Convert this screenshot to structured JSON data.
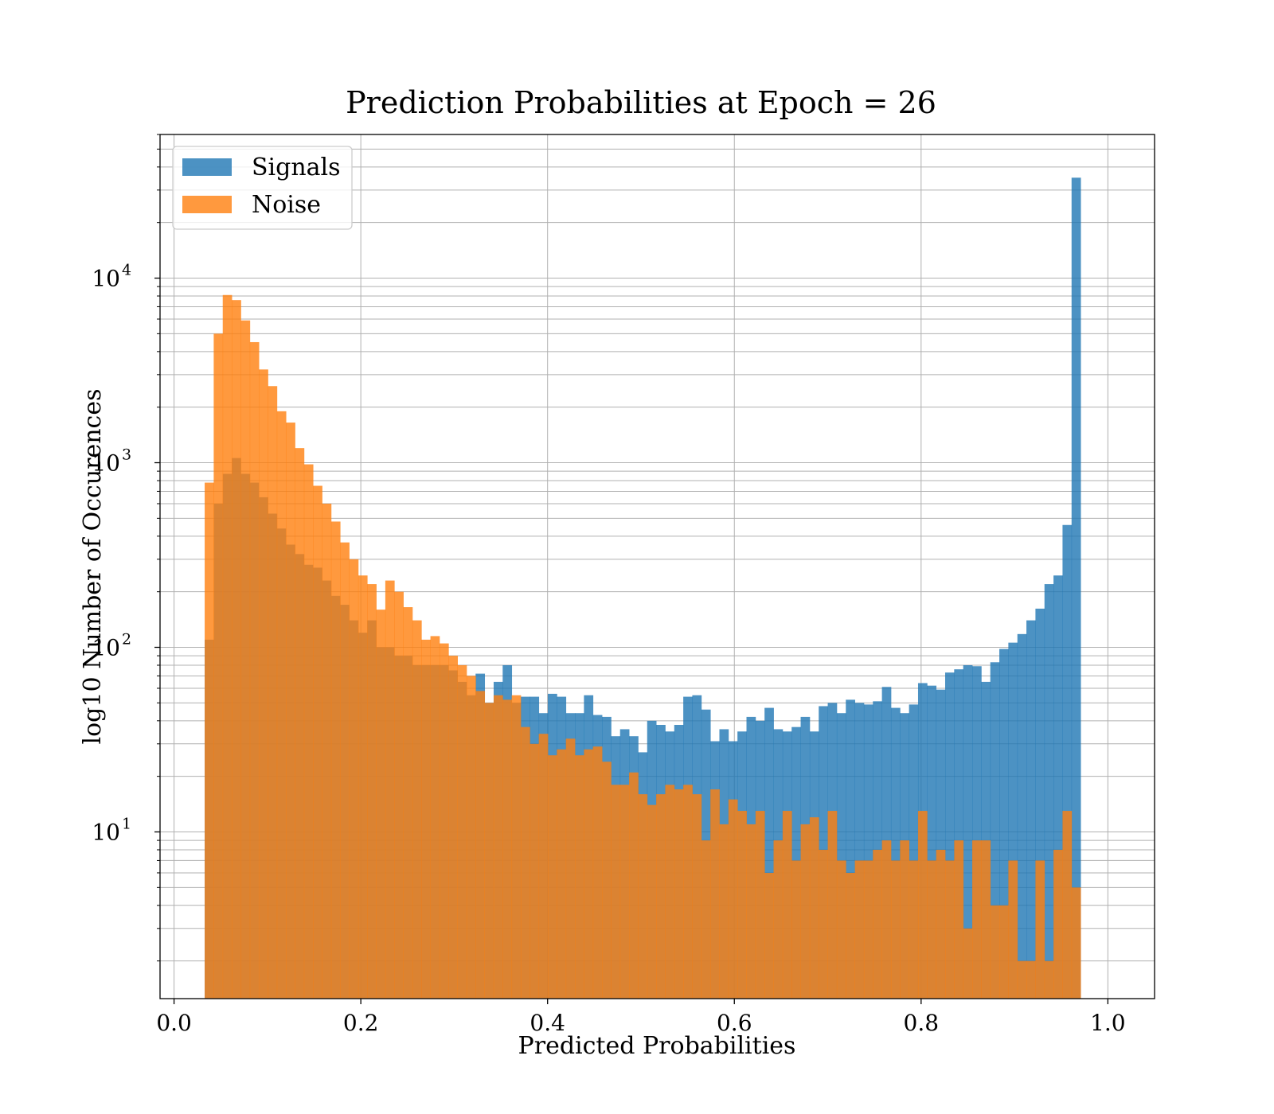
{
  "chart_data": {
    "type": "histogram",
    "title": "Prediction Probabilities at Epoch = 26",
    "xlabel": "Predicted Probabilities",
    "ylabel": "log10 Number of Occurences",
    "xlim": [
      -0.015,
      1.05
    ],
    "ylim": [
      1.25,
      60000
    ],
    "yscale": "log",
    "grid": true,
    "legend_position": "upper left",
    "x_ticks": [
      "0.0",
      "0.2",
      "0.4",
      "0.6",
      "0.8",
      "1.0"
    ],
    "x_tick_values": [
      0,
      0.2,
      0.4,
      0.6,
      0.8,
      1.0
    ],
    "y_ticks": [
      {
        "base": "10",
        "exp": "1",
        "value": 10
      },
      {
        "base": "10",
        "exp": "2",
        "value": 100
      },
      {
        "base": "10",
        "exp": "3",
        "value": 1000
      },
      {
        "base": "10",
        "exp": "4",
        "value": 10000
      }
    ],
    "bin_start": 0.0328,
    "bin_width": 0.00967,
    "series": [
      {
        "name": "Signals",
        "color": "#1f77b4",
        "opacity": 0.8,
        "values": [
          110,
          600,
          870,
          1060,
          870,
          780,
          650,
          530,
          440,
          360,
          320,
          280,
          270,
          230,
          190,
          170,
          140,
          120,
          140,
          100,
          100,
          90,
          90,
          80,
          80,
          80,
          80,
          75,
          65,
          55,
          72,
          50,
          65,
          80,
          50,
          54,
          54,
          44,
          56,
          54,
          44,
          44,
          55,
          43,
          42,
          33,
          36,
          33,
          27,
          40,
          38,
          35,
          38,
          54,
          55,
          46,
          31,
          36,
          31,
          35,
          42,
          40,
          47,
          36,
          35,
          37,
          42,
          35,
          48,
          50,
          44,
          52,
          50,
          49,
          51,
          61,
          47,
          44,
          49,
          64,
          62,
          59,
          73,
          76,
          80,
          79,
          65,
          83,
          98,
          106,
          118,
          140,
          162,
          220,
          245,
          460,
          35000
        ]
      },
      {
        "name": "Noise",
        "color": "#ff7f0e",
        "opacity": 0.8,
        "values": [
          780,
          5000,
          8100,
          7600,
          5900,
          4500,
          3200,
          2600,
          1900,
          1650,
          1200,
          980,
          750,
          600,
          480,
          370,
          300,
          245,
          220,
          160,
          230,
          200,
          165,
          140,
          110,
          115,
          105,
          90,
          80,
          70,
          58,
          50,
          55,
          52,
          55,
          37,
          30,
          34,
          26,
          28,
          32,
          26,
          28,
          29,
          24,
          18,
          18,
          21,
          16,
          14,
          16,
          18,
          17,
          18,
          16,
          9,
          17,
          11,
          15,
          13,
          11,
          13,
          6,
          9,
          13,
          7,
          11,
          12,
          8,
          13,
          7,
          6,
          7,
          7,
          8,
          9,
          7,
          9,
          7,
          13,
          7,
          8,
          7,
          9,
          3,
          9,
          9,
          4,
          4,
          7,
          2,
          2,
          7,
          2,
          8,
          13,
          5
        ]
      }
    ]
  }
}
